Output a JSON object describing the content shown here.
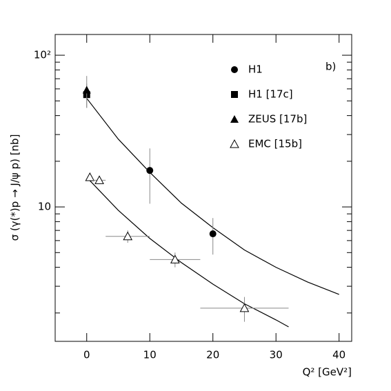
{
  "chart_data": {
    "type": "scatter",
    "annotation": "b)",
    "x_label": "Q² [GeV²]",
    "y_label": "σ (γ(*)p → J/ψ p)  [nb]",
    "xlim": [
      -5,
      42
    ],
    "xticks": [
      0,
      10,
      20,
      30,
      40
    ],
    "ylim": [
      1.3,
      137
    ],
    "log_y": true,
    "yticks": [
      {
        "value": 10,
        "label": "10"
      },
      {
        "value": 100,
        "label": "10²"
      }
    ],
    "yticks_minor": [
      2,
      3,
      4,
      5,
      6,
      7,
      8,
      9,
      20,
      30,
      40,
      50,
      60,
      70,
      80,
      90
    ],
    "series": [
      {
        "name": "H1",
        "marker": "circle",
        "color": "#000000",
        "x": [
          10,
          20
        ],
        "values": [
          17.4,
          6.65
        ],
        "yerr": [
          6.9,
          1.8
        ],
        "xerr": [
          null,
          null
        ]
      },
      {
        "name": "H1 [17c]",
        "marker": "square",
        "color": "#000000",
        "x": [
          0
        ],
        "values": [
          55
        ],
        "yerr": [
          10
        ],
        "xerr": [
          null
        ]
      },
      {
        "name": "ZEUS [17b]",
        "marker": "triangle",
        "color": "#000000",
        "x": [
          0
        ],
        "values": [
          59
        ],
        "yerr": [
          14
        ],
        "xerr": [
          null
        ]
      },
      {
        "name": "EMC [15b]",
        "marker": "open-triangle",
        "color": "#000000",
        "x": [
          0.5,
          2,
          6.5,
          14,
          25
        ],
        "values": [
          15.7,
          15.0,
          6.4,
          4.5,
          2.15
        ],
        "yerr": [
          0.8,
          0.8,
          0.6,
          0.5,
          0.4
        ],
        "xerr": [
          null,
          1,
          3.5,
          4,
          7
        ]
      }
    ],
    "curves": [
      {
        "color": "#000000",
        "x": [
          0,
          5,
          10,
          15,
          20,
          25,
          30,
          35,
          40
        ],
        "values": [
          52,
          28,
          16.9,
          10.6,
          7.3,
          5.2,
          4.0,
          3.2,
          2.65
        ]
      },
      {
        "color": "#000000",
        "x": [
          0.5,
          5,
          10,
          15,
          20,
          25,
          30,
          32
        ],
        "values": [
          14.9,
          9.5,
          6.2,
          4.3,
          3.1,
          2.3,
          1.8,
          1.62
        ]
      }
    ]
  }
}
